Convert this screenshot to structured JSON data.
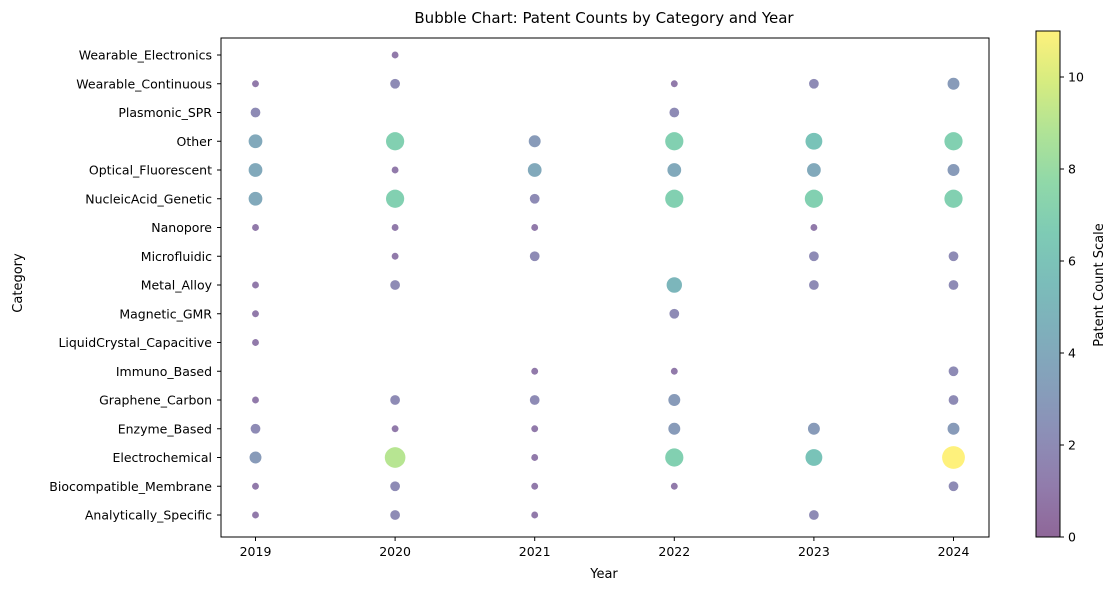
{
  "chart_data": {
    "type": "scatter",
    "title": "Bubble Chart: Patent Counts by Category and Year",
    "xlabel": "Year",
    "ylabel": "Category",
    "x_categories": [
      "2019",
      "2020",
      "2021",
      "2022",
      "2023",
      "2024"
    ],
    "y_categories": [
      "Analytically_Specific",
      "Biocompatible_Membrane",
      "Electrochemical",
      "Enzyme_Based",
      "Graphene_Carbon",
      "Immuno_Based",
      "LiquidCrystal_Capacitive",
      "Magnetic_GMR",
      "Metal_Alloy",
      "Microfluidic",
      "Nanopore",
      "NucleicAcid_Genetic",
      "Optical_Fluorescent",
      "Other",
      "Plasmonic_SPR",
      "Wearable_Continuous",
      "Wearable_Electronics"
    ],
    "points": [
      {
        "x": "2019",
        "y": "Analytically_Specific",
        "count": 1
      },
      {
        "x": "2020",
        "y": "Analytically_Specific",
        "count": 2
      },
      {
        "x": "2021",
        "y": "Analytically_Specific",
        "count": 1
      },
      {
        "x": "2023",
        "y": "Analytically_Specific",
        "count": 2
      },
      {
        "x": "2019",
        "y": "Biocompatible_Membrane",
        "count": 1
      },
      {
        "x": "2020",
        "y": "Biocompatible_Membrane",
        "count": 2
      },
      {
        "x": "2021",
        "y": "Biocompatible_Membrane",
        "count": 1
      },
      {
        "x": "2022",
        "y": "Biocompatible_Membrane",
        "count": 1
      },
      {
        "x": "2024",
        "y": "Biocompatible_Membrane",
        "count": 2
      },
      {
        "x": "2019",
        "y": "Electrochemical",
        "count": 3
      },
      {
        "x": "2020",
        "y": "Electrochemical",
        "count": 9
      },
      {
        "x": "2021",
        "y": "Electrochemical",
        "count": 1
      },
      {
        "x": "2022",
        "y": "Electrochemical",
        "count": 7
      },
      {
        "x": "2023",
        "y": "Electrochemical",
        "count": 6
      },
      {
        "x": "2024",
        "y": "Electrochemical",
        "count": 11
      },
      {
        "x": "2019",
        "y": "Enzyme_Based",
        "count": 2
      },
      {
        "x": "2020",
        "y": "Enzyme_Based",
        "count": 1
      },
      {
        "x": "2021",
        "y": "Enzyme_Based",
        "count": 1
      },
      {
        "x": "2022",
        "y": "Enzyme_Based",
        "count": 3
      },
      {
        "x": "2023",
        "y": "Enzyme_Based",
        "count": 3
      },
      {
        "x": "2024",
        "y": "Enzyme_Based",
        "count": 3
      },
      {
        "x": "2019",
        "y": "Graphene_Carbon",
        "count": 1
      },
      {
        "x": "2020",
        "y": "Graphene_Carbon",
        "count": 2
      },
      {
        "x": "2021",
        "y": "Graphene_Carbon",
        "count": 2
      },
      {
        "x": "2022",
        "y": "Graphene_Carbon",
        "count": 3
      },
      {
        "x": "2024",
        "y": "Graphene_Carbon",
        "count": 2
      },
      {
        "x": "2021",
        "y": "Immuno_Based",
        "count": 1
      },
      {
        "x": "2022",
        "y": "Immuno_Based",
        "count": 1
      },
      {
        "x": "2024",
        "y": "Immuno_Based",
        "count": 2
      },
      {
        "x": "2019",
        "y": "LiquidCrystal_Capacitive",
        "count": 1
      },
      {
        "x": "2019",
        "y": "Magnetic_GMR",
        "count": 1
      },
      {
        "x": "2022",
        "y": "Magnetic_GMR",
        "count": 2
      },
      {
        "x": "2019",
        "y": "Metal_Alloy",
        "count": 1
      },
      {
        "x": "2020",
        "y": "Metal_Alloy",
        "count": 2
      },
      {
        "x": "2022",
        "y": "Metal_Alloy",
        "count": 5
      },
      {
        "x": "2023",
        "y": "Metal_Alloy",
        "count": 2
      },
      {
        "x": "2024",
        "y": "Metal_Alloy",
        "count": 2
      },
      {
        "x": "2020",
        "y": "Microfluidic",
        "count": 1
      },
      {
        "x": "2021",
        "y": "Microfluidic",
        "count": 2
      },
      {
        "x": "2023",
        "y": "Microfluidic",
        "count": 2
      },
      {
        "x": "2024",
        "y": "Microfluidic",
        "count": 2
      },
      {
        "x": "2019",
        "y": "Nanopore",
        "count": 1
      },
      {
        "x": "2020",
        "y": "Nanopore",
        "count": 1
      },
      {
        "x": "2021",
        "y": "Nanopore",
        "count": 1
      },
      {
        "x": "2023",
        "y": "Nanopore",
        "count": 1
      },
      {
        "x": "2019",
        "y": "NucleicAcid_Genetic",
        "count": 4
      },
      {
        "x": "2020",
        "y": "NucleicAcid_Genetic",
        "count": 7
      },
      {
        "x": "2021",
        "y": "NucleicAcid_Genetic",
        "count": 2
      },
      {
        "x": "2022",
        "y": "NucleicAcid_Genetic",
        "count": 7
      },
      {
        "x": "2023",
        "y": "NucleicAcid_Genetic",
        "count": 7
      },
      {
        "x": "2024",
        "y": "NucleicAcid_Genetic",
        "count": 7
      },
      {
        "x": "2019",
        "y": "Optical_Fluorescent",
        "count": 4
      },
      {
        "x": "2020",
        "y": "Optical_Fluorescent",
        "count": 1
      },
      {
        "x": "2021",
        "y": "Optical_Fluorescent",
        "count": 4
      },
      {
        "x": "2022",
        "y": "Optical_Fluorescent",
        "count": 4
      },
      {
        "x": "2023",
        "y": "Optical_Fluorescent",
        "count": 4
      },
      {
        "x": "2024",
        "y": "Optical_Fluorescent",
        "count": 3
      },
      {
        "x": "2019",
        "y": "Other",
        "count": 4
      },
      {
        "x": "2020",
        "y": "Other",
        "count": 7
      },
      {
        "x": "2021",
        "y": "Other",
        "count": 3
      },
      {
        "x": "2022",
        "y": "Other",
        "count": 7
      },
      {
        "x": "2023",
        "y": "Other",
        "count": 6
      },
      {
        "x": "2024",
        "y": "Other",
        "count": 7
      },
      {
        "x": "2019",
        "y": "Plasmonic_SPR",
        "count": 2
      },
      {
        "x": "2022",
        "y": "Plasmonic_SPR",
        "count": 2
      },
      {
        "x": "2019",
        "y": "Wearable_Continuous",
        "count": 1
      },
      {
        "x": "2020",
        "y": "Wearable_Continuous",
        "count": 2
      },
      {
        "x": "2022",
        "y": "Wearable_Continuous",
        "count": 1
      },
      {
        "x": "2023",
        "y": "Wearable_Continuous",
        "count": 2
      },
      {
        "x": "2024",
        "y": "Wearable_Continuous",
        "count": 3
      },
      {
        "x": "2020",
        "y": "Wearable_Electronics",
        "count": 1
      }
    ],
    "colorbar": {
      "label": "Patent Count Scale",
      "min": 0,
      "max": 11,
      "ticks": [
        0,
        2,
        4,
        6,
        8,
        10
      ],
      "colormap": "viridis"
    },
    "alpha": 0.6,
    "grid": false
  }
}
